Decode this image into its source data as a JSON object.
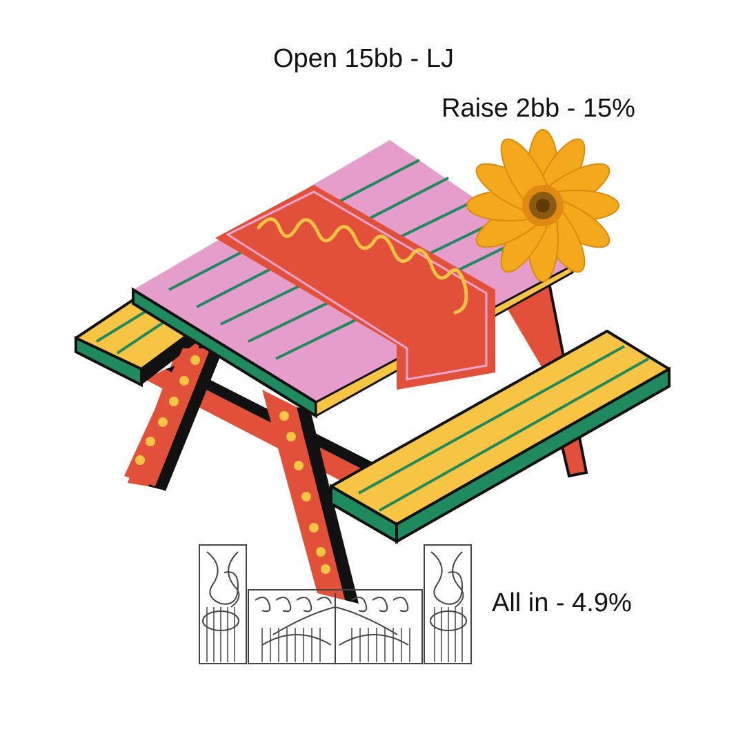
{
  "header": {
    "title": "Open 15bb - LJ"
  },
  "actions": {
    "raise": "Raise 2bb - 15%",
    "all_in": "All in - 4.9%"
  },
  "colors": {
    "tabletop": "#e59ecb",
    "tabletop_edge": "#1e8a5e",
    "bench": "#f7c444",
    "legs": "#e2503a",
    "runner": "#e2503a",
    "runner_trim": "#f6a6d3",
    "dots": "#f7c444",
    "flower_petal": "#f4a81b",
    "flower_center": "#8a5a12",
    "gate": "#444444"
  },
  "illustration": {
    "items": [
      "picnic-table-icon",
      "flower-icon",
      "iron-gate-icon"
    ]
  }
}
